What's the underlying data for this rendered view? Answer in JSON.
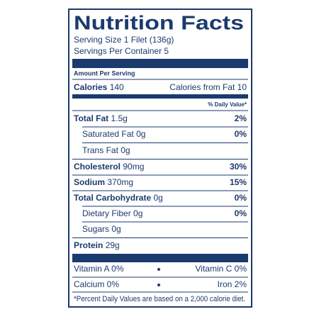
{
  "header": {
    "title": "Nutrition Facts",
    "serving_size": "Serving Size 1 Filet (136g)",
    "servings_per_container": "Servings Per Container 5"
  },
  "amount_per_serving": "Amount Per Serving",
  "calories": {
    "label": "Calories",
    "value": "140",
    "from_fat": "Calories from Fat 10"
  },
  "daily_value_header": "% Daily Value*",
  "nutrients": [
    {
      "name": "Total Fat",
      "amount": "1.5g",
      "dv": "2%"
    },
    {
      "name": "Saturated Fat",
      "amount": "0g",
      "dv": "0%"
    },
    {
      "name": "Trans Fat",
      "amount": "0g"
    },
    {
      "name": "Cholesterol",
      "amount": "90mg",
      "dv": "30%"
    },
    {
      "name": "Sodium",
      "amount": "370mg",
      "dv": "15%"
    },
    {
      "name": "Total Carbohydrate",
      "amount": "0g",
      "dv": "0%"
    },
    {
      "name": "Dietary Fiber",
      "amount": "0g",
      "dv": "0%"
    },
    {
      "name": "Sugars",
      "amount": "0g"
    },
    {
      "name": "Protein",
      "amount": "29g"
    }
  ],
  "vitamins": [
    "Vitamin A 0%",
    "Vitamin C 0%",
    "Calcium 0%",
    "Iron 2%"
  ],
  "footnote": "*Percent Daily Values are based on a 2,000 calorie diet."
}
